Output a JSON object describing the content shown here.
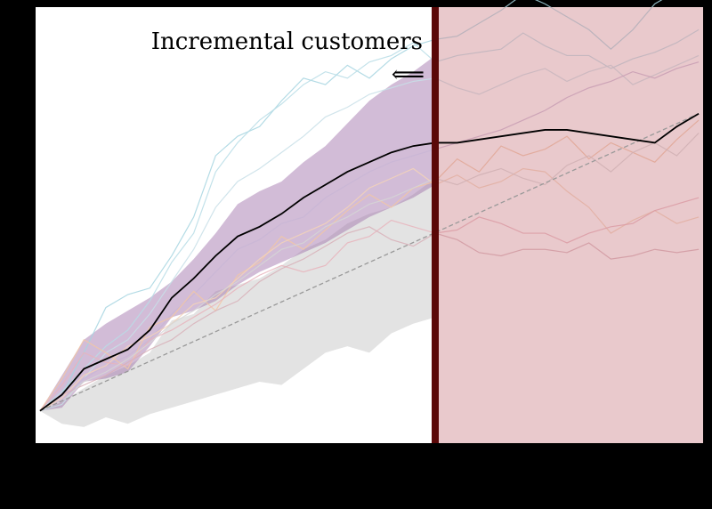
{
  "chart_data": {
    "type": "line",
    "title": "",
    "xlabel": "",
    "ylabel": "",
    "grid": false,
    "x": [
      0,
      1,
      2,
      3,
      4,
      5,
      6,
      7,
      8,
      9,
      10,
      11,
      12,
      13,
      14,
      15,
      16,
      17,
      18,
      19,
      20,
      21,
      22,
      23,
      24,
      25,
      26,
      27,
      28,
      29,
      30
    ],
    "xlim": [
      -0.2,
      30.2
    ],
    "ylim": [
      -0.1,
      1.25
    ],
    "treatment_start": 18,
    "annotation": {
      "text": "Incremental customers",
      "arrow": "⟸"
    },
    "colors": {
      "mean": "#000000",
      "trend": "#999999",
      "purple_band": "#9b6aa6",
      "grey_band": "#d0d0d0",
      "post_region": "#c8787f",
      "divider": "#5a0808"
    },
    "series": [
      {
        "role": "mean",
        "values": [
          0.0,
          0.05,
          0.13,
          0.16,
          0.19,
          0.25,
          0.35,
          0.41,
          0.48,
          0.54,
          0.57,
          0.61,
          0.66,
          0.7,
          0.74,
          0.77,
          0.8,
          0.82,
          0.83,
          0.83,
          0.84,
          0.85,
          0.86,
          0.87,
          0.87,
          0.86,
          0.85,
          0.84,
          0.83,
          0.88,
          0.92
        ]
      },
      {
        "role": "trend",
        "values": [
          0.0,
          0.0307,
          0.0613,
          0.092,
          0.1227,
          0.1533,
          0.184,
          0.2147,
          0.2453,
          0.276,
          0.3067,
          0.3373,
          0.368,
          0.3987,
          0.4293,
          0.46,
          0.4907,
          0.5213,
          0.552,
          0.5827,
          0.6133,
          0.644,
          0.6747,
          0.7053,
          0.736,
          0.7667,
          0.7973,
          0.828,
          0.8587,
          0.8893,
          0.92
        ]
      }
    ],
    "bands": [
      {
        "role": "purple",
        "lower": [
          0.0,
          0.01,
          0.09,
          0.1,
          0.12,
          0.2,
          0.29,
          0.31,
          0.34,
          0.39,
          0.43,
          0.46,
          0.49,
          0.52,
          0.56,
          0.6,
          0.63,
          0.66,
          0.7
        ],
        "upper": [
          0.0,
          0.11,
          0.22,
          0.27,
          0.31,
          0.35,
          0.4,
          0.47,
          0.55,
          0.64,
          0.68,
          0.71,
          0.77,
          0.82,
          0.89,
          0.96,
          1.01,
          1.05,
          1.1
        ]
      },
      {
        "role": "grey",
        "lower": [
          0.0,
          -0.04,
          -0.05,
          -0.02,
          -0.04,
          -0.01,
          0.01,
          0.03,
          0.05,
          0.07,
          0.09,
          0.08,
          0.13,
          0.18,
          0.2,
          0.18,
          0.24,
          0.27,
          0.29
        ],
        "upper": [
          0.0,
          0.03,
          0.07,
          0.11,
          0.14,
          0.18,
          0.28,
          0.3,
          0.37,
          0.39,
          0.41,
          0.45,
          0.5,
          0.53,
          0.58,
          0.61,
          0.63,
          0.67,
          0.72
        ]
      }
    ],
    "faint_lines": [
      {
        "color": "#a6d5e0",
        "values": [
          0.0,
          0.05,
          0.18,
          0.32,
          0.36,
          0.38,
          0.48,
          0.6,
          0.79,
          0.85,
          0.88,
          0.96,
          1.03,
          1.01,
          1.07,
          1.03,
          1.09,
          1.13,
          1.15,
          1.16,
          1.2,
          1.24,
          1.29,
          1.26,
          1.22,
          1.18,
          1.12,
          1.18,
          1.26,
          1.3,
          1.28
        ]
      },
      {
        "color": "#b9dde6",
        "values": [
          0.0,
          0.06,
          0.13,
          0.2,
          0.25,
          0.34,
          0.46,
          0.55,
          0.74,
          0.83,
          0.9,
          0.95,
          1.01,
          1.05,
          1.03,
          1.08,
          1.1,
          1.14,
          1.08,
          1.1,
          1.11,
          1.12,
          1.17,
          1.13,
          1.1,
          1.1,
          1.06,
          1.09,
          1.11,
          1.14,
          1.18
        ]
      },
      {
        "color": "#c8dfe8",
        "values": [
          0.0,
          0.02,
          0.1,
          0.18,
          0.22,
          0.3,
          0.4,
          0.5,
          0.63,
          0.71,
          0.75,
          0.8,
          0.85,
          0.91,
          0.94,
          0.98,
          1.0,
          1.02,
          1.03,
          1.0,
          0.98,
          1.01,
          1.04,
          1.06,
          1.02,
          1.05,
          1.07,
          1.01,
          1.04,
          1.07,
          1.1
        ]
      },
      {
        "color": "#c9b6d6",
        "values": [
          0.0,
          0.03,
          0.1,
          0.14,
          0.17,
          0.22,
          0.3,
          0.36,
          0.43,
          0.5,
          0.53,
          0.58,
          0.6,
          0.66,
          0.7,
          0.74,
          0.77,
          0.79,
          0.81,
          0.83,
          0.85,
          0.87,
          0.9,
          0.93,
          0.97,
          1.0,
          1.02,
          1.05,
          1.03,
          1.06,
          1.08
        ]
      },
      {
        "color": "#f2c7a6",
        "values": [
          0.0,
          0.1,
          0.22,
          0.18,
          0.13,
          0.26,
          0.29,
          0.37,
          0.31,
          0.42,
          0.46,
          0.54,
          0.5,
          0.56,
          0.62,
          0.67,
          0.63,
          0.69,
          0.71,
          0.78,
          0.74,
          0.82,
          0.79,
          0.81,
          0.85,
          0.78,
          0.83,
          0.8,
          0.77,
          0.84,
          0.9
        ]
      },
      {
        "color": "#f5d4b8",
        "values": [
          0.0,
          0.04,
          0.11,
          0.14,
          0.2,
          0.23,
          0.27,
          0.33,
          0.35,
          0.41,
          0.47,
          0.52,
          0.55,
          0.58,
          0.63,
          0.69,
          0.72,
          0.75,
          0.7,
          0.73,
          0.69,
          0.71,
          0.75,
          0.74,
          0.68,
          0.63,
          0.55,
          0.59,
          0.62,
          0.58,
          0.6
        ]
      },
      {
        "color": "#e8b4bc",
        "values": [
          0.0,
          0.08,
          0.18,
          0.15,
          0.14,
          0.22,
          0.25,
          0.29,
          0.33,
          0.38,
          0.42,
          0.45,
          0.43,
          0.45,
          0.52,
          0.54,
          0.59,
          0.57,
          0.55,
          0.56,
          0.6,
          0.58,
          0.55,
          0.55,
          0.52,
          0.55,
          0.57,
          0.58,
          0.62,
          0.64,
          0.66
        ]
      },
      {
        "color": "#d8b0b8",
        "values": [
          0.0,
          0.05,
          0.08,
          0.11,
          0.15,
          0.19,
          0.22,
          0.27,
          0.31,
          0.34,
          0.4,
          0.44,
          0.47,
          0.51,
          0.55,
          0.57,
          0.53,
          0.51,
          0.55,
          0.53,
          0.49,
          0.48,
          0.5,
          0.5,
          0.49,
          0.52,
          0.47,
          0.48,
          0.5,
          0.49,
          0.5
        ]
      },
      {
        "color": "#d6d6d6",
        "values": [
          0.0,
          0.03,
          0.09,
          0.12,
          0.16,
          0.21,
          0.27,
          0.31,
          0.36,
          0.4,
          0.45,
          0.5,
          0.52,
          0.57,
          0.6,
          0.64,
          0.66,
          0.69,
          0.72,
          0.7,
          0.73,
          0.75,
          0.72,
          0.7,
          0.76,
          0.79,
          0.74,
          0.8,
          0.83,
          0.79,
          0.86
        ]
      }
    ]
  }
}
